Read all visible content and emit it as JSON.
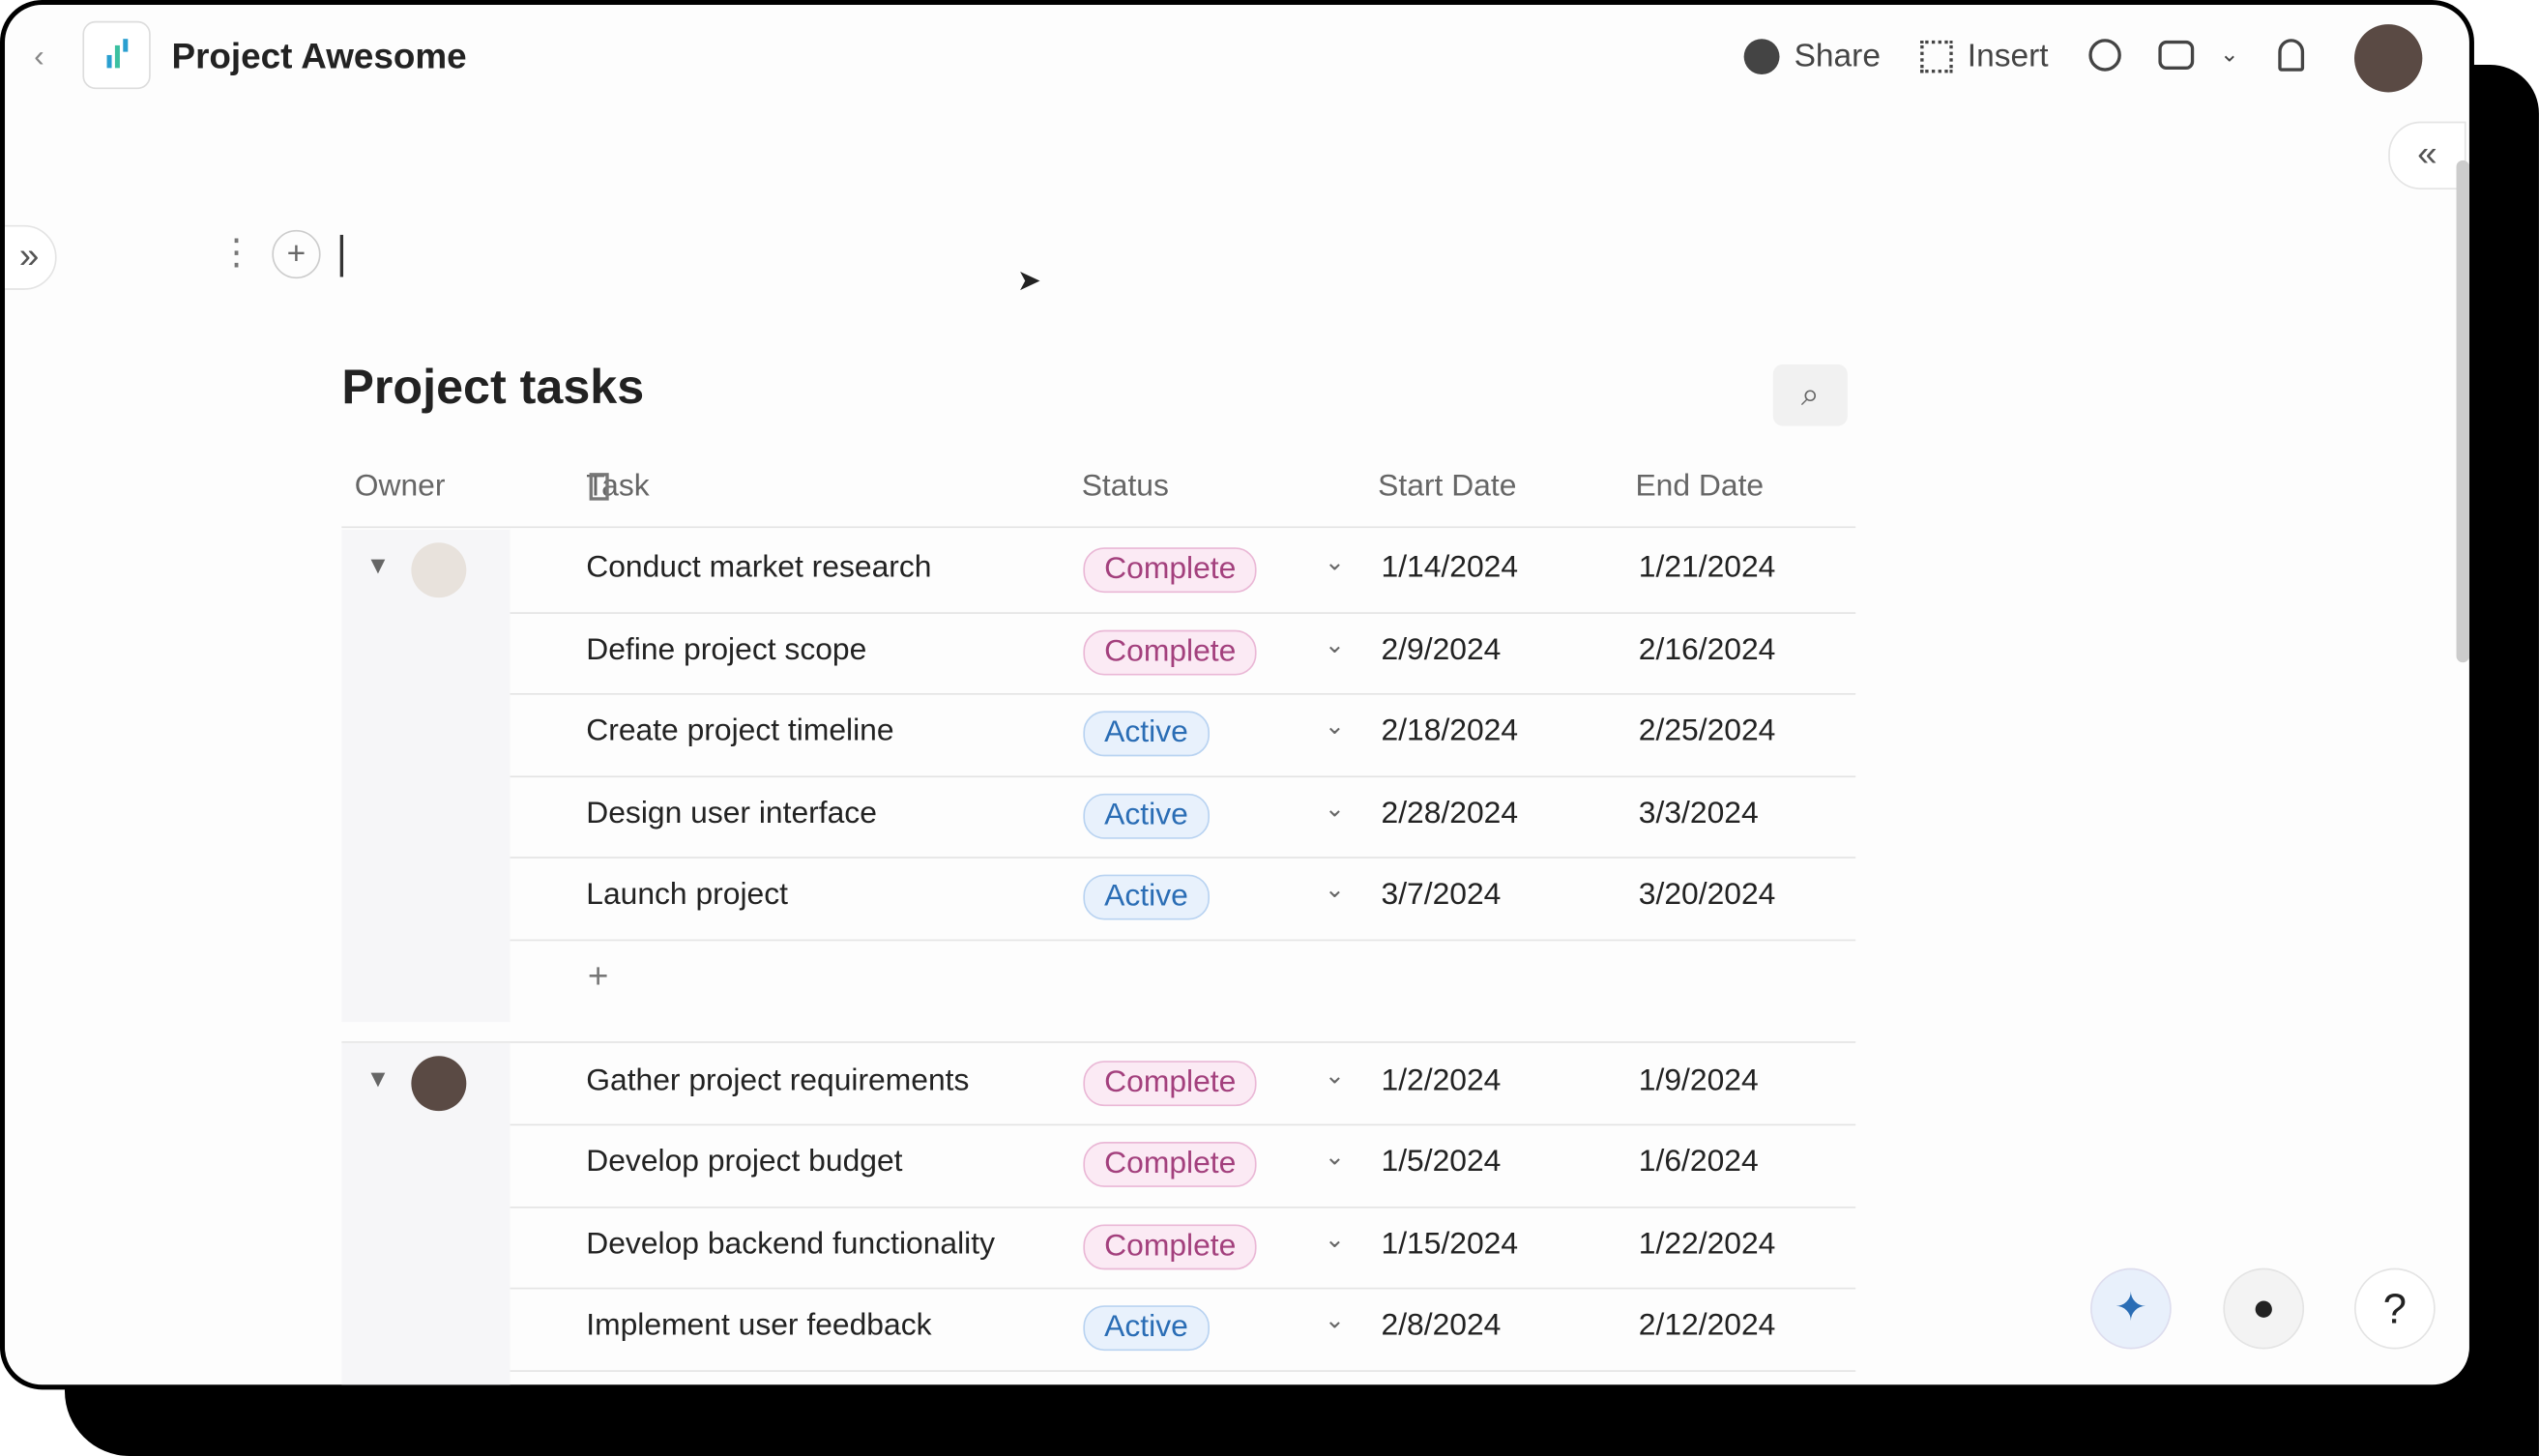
{
  "header": {
    "title": "Project Awesome",
    "actions": [
      "Share",
      "Insert"
    ]
  },
  "table": {
    "title": "Project tasks",
    "columns": [
      "Owner",
      "Task",
      "Status",
      "Start Date",
      "End Date"
    ],
    "groups": [
      {
        "rows": [
          {
            "task": "Conduct market research",
            "status": "Complete",
            "start": "1/14/2024",
            "end": "1/21/2024"
          },
          {
            "task": "Define project scope",
            "status": "Complete",
            "start": "2/9/2024",
            "end": "2/16/2024"
          },
          {
            "task": "Create project timeline",
            "status": "Active",
            "start": "2/18/2024",
            "end": "2/25/2024"
          },
          {
            "task": "Design user interface",
            "status": "Active",
            "start": "2/28/2024",
            "end": "3/3/2024"
          },
          {
            "task": "Launch project",
            "status": "Active",
            "start": "3/7/2024",
            "end": "3/20/2024"
          }
        ]
      },
      {
        "rows": [
          {
            "task": "Gather project requirements",
            "status": "Complete",
            "start": "1/2/2024",
            "end": "1/9/2024"
          },
          {
            "task": "Develop project budget",
            "status": "Complete",
            "start": "1/5/2024",
            "end": "1/6/2024"
          },
          {
            "task": "Develop backend functionality",
            "status": "Complete",
            "start": "1/15/2024",
            "end": "1/22/2024"
          },
          {
            "task": "Implement user feedback",
            "status": "Active",
            "start": "2/8/2024",
            "end": "2/12/2024"
          }
        ]
      }
    ]
  }
}
